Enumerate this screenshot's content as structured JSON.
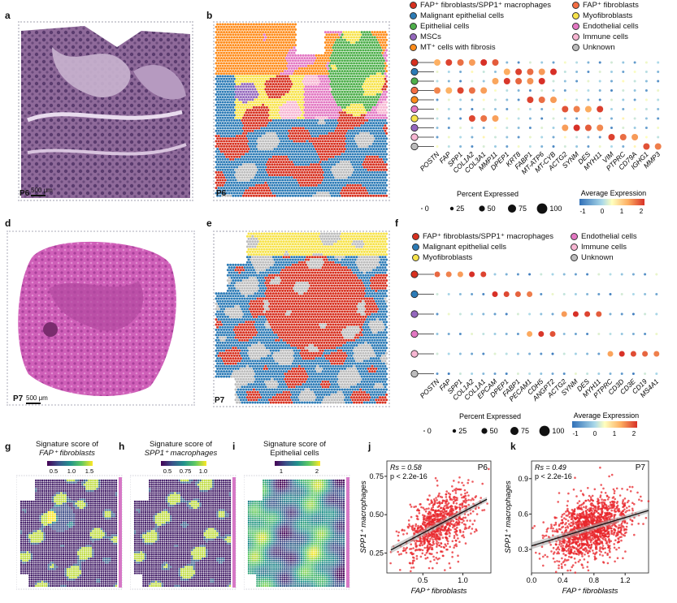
{
  "panels": {
    "a": {
      "label": "a",
      "sample": "P6",
      "scale": "500 μm"
    },
    "b": {
      "label": "b",
      "sample": "P6"
    },
    "c_legend": [
      {
        "name": "FAP⁺ fibroblasts/SPP1⁺ macrophages",
        "color": "#d7301f"
      },
      {
        "name": "FAP⁺ fibroblasts",
        "color": "#f46d43"
      },
      {
        "name": "Malignant epithelial cells",
        "color": "#2c7bb6"
      },
      {
        "name": "Myofibroblasts",
        "color": "#f7e34a"
      },
      {
        "name": "Epithelial cells",
        "color": "#4daf4a"
      },
      {
        "name": "Endothelial cells",
        "color": "#e377c2"
      },
      {
        "name": "MSCs",
        "color": "#9467bd"
      },
      {
        "name": "Immune cells",
        "color": "#f7b6d2"
      },
      {
        "name": "MT⁺ cells with fibrosis",
        "color": "#ff8c1a"
      },
      {
        "name": "Unknown",
        "color": "#bdbdbd"
      }
    ],
    "c_genes": [
      "POSTN",
      "FAP",
      "SPP1",
      "COL1A2",
      "COL3A1",
      "MMP11",
      "DPEP1",
      "KRT8",
      "FABP1",
      "MT-ATP6",
      "MT-CYB",
      "ACTG2",
      "SYNM",
      "DES",
      "MYH11",
      "VIM",
      "PTPRC",
      "CD79A",
      "IGHG1",
      "MMP3"
    ],
    "c_rows": [
      "#d7301f",
      "#2c7bb6",
      "#4daf4a",
      "#f46d43",
      "#ff8c1a",
      "#e377c2",
      "#f7e34a",
      "#9467bd",
      "#f7b6d2",
      "#bdbdbd"
    ],
    "d": {
      "label": "d",
      "sample": "P7",
      "scale": "500 μm"
    },
    "e": {
      "label": "e",
      "sample": "P7"
    },
    "f_label": "f",
    "f_legend": [
      {
        "name": "FAP⁺ fibroblasts/SPP1⁺ macrophages",
        "color": "#d7301f"
      },
      {
        "name": "Endothelial cells",
        "color": "#e377c2"
      },
      {
        "name": "Malignant epithelial cells",
        "color": "#2c7bb6"
      },
      {
        "name": "Immune cells",
        "color": "#f7b6d2"
      },
      {
        "name": "Myofibroblasts",
        "color": "#f7e34a"
      },
      {
        "name": "Unknown",
        "color": "#bdbdbd"
      }
    ],
    "f_genes": [
      "POSTN",
      "FAP",
      "SPP1",
      "COL1A2",
      "COL1A1",
      "EPCAM",
      "DPEP1",
      "FABP1",
      "PECAM1",
      "CDH5",
      "ANGPT2",
      "ACTG2",
      "SYNM",
      "DES",
      "MYH11",
      "PTPRC",
      "CD3D",
      "CD3E",
      "CD19",
      "MS4A1"
    ],
    "f_rows": [
      "#d7301f",
      "#2c7bb6",
      "#9467bd",
      "#e377c2",
      "#f7b6d2",
      "#bdbdbd"
    ],
    "size_legend": {
      "title": "Percent Expressed",
      "values": [
        "0",
        "25",
        "50",
        "75",
        "100"
      ]
    },
    "color_legend": {
      "title": "Average Expression",
      "c_ticks": [
        "-1",
        "0",
        "1",
        "2"
      ],
      "f_ticks": [
        "-1",
        "0",
        "1",
        "2"
      ]
    },
    "g": {
      "label": "g",
      "title1": "Signature score of",
      "title2": "FAP⁺ fibroblasts",
      "ticks": [
        "0.5",
        "1.0",
        "1.5"
      ]
    },
    "h": {
      "label": "h",
      "title1": "Signature score of",
      "title2": "SPP1⁺ macrophages",
      "ticks": [
        "0.5",
        "0.75",
        "1.0"
      ]
    },
    "i": {
      "label": "i",
      "title1": "Signature score of",
      "title2": "Epithelial cells",
      "ticks": [
        "1",
        "2"
      ]
    },
    "j": {
      "label": "j",
      "rs": "Rs = 0.58",
      "p": "p < 2.2e-16",
      "sample": "P6",
      "xlabel": "FAP⁺ fibroblasts",
      "ylabel": "SPP1⁺ macrophages",
      "xticks": [
        "0.5",
        "1.0"
      ],
      "yticks": [
        "0.25",
        "0.50",
        "0.75"
      ]
    },
    "k": {
      "label": "k",
      "rs": "Rs = 0.49",
      "p": "p < 2.2e-16",
      "sample": "P7",
      "xlabel": "FAP⁺ fibroblasts",
      "ylabel": "SPP1⁺ macrophages",
      "xticks": [
        "0.0",
        "0.4",
        "0.8",
        "1.2"
      ],
      "yticks": [
        "0.3",
        "0.6",
        "0.9"
      ]
    }
  },
  "chart_data": [
    {
      "type": "scatter",
      "title": "P6",
      "xlabel": "FAP⁺ fibroblasts",
      "ylabel": "SPP1⁺ macrophages",
      "xlim": [
        0.05,
        1.35
      ],
      "ylim": [
        0.12,
        0.85
      ],
      "fit": {
        "x": [
          0.1,
          1.3
        ],
        "y": [
          0.27,
          0.6
        ]
      },
      "n_points": 900
    },
    {
      "type": "scatter",
      "title": "P7",
      "xlabel": "FAP⁺ fibroblasts",
      "ylabel": "SPP1⁺ macrophages",
      "xlim": [
        0.0,
        1.5
      ],
      "ylim": [
        0.1,
        1.05
      ],
      "fit": {
        "x": [
          0.0,
          1.5
        ],
        "y": [
          0.33,
          0.63
        ]
      },
      "n_points": 1400
    }
  ]
}
